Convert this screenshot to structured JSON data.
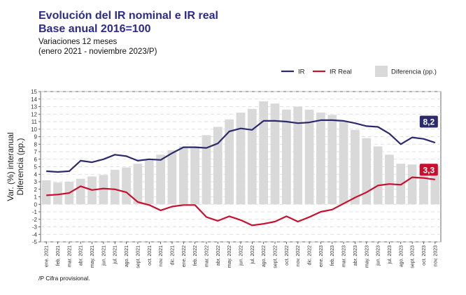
{
  "header": {
    "title_line1": "Evolución del IR nominal e IR real",
    "title_line2": "Base anual 2016=100",
    "subtitle_line1": "Variaciones 12 meses",
    "subtitle_line2": "(enero 2021 - noviembre 2023/P)"
  },
  "footnote": "/P Cifra provisional.",
  "colors": {
    "ir": "#2c2a6e",
    "ir_real": "#c8102e",
    "bar": "#d9d9d9",
    "title": "#2c2a8a"
  },
  "chart_data": {
    "type": "bar+line",
    "title": "Evolución del IR nominal e IR real",
    "subtitle": "Base anual 2016=100",
    "ylabel_line1": "Var. (%) interanual",
    "ylabel_line2": "Diferencia (pp.)",
    "ylim": [
      -5,
      15
    ],
    "yticks": [
      -5,
      -4,
      -3,
      -2,
      -1,
      0,
      1,
      2,
      3,
      4,
      5,
      6,
      7,
      8,
      9,
      10,
      11,
      12,
      13,
      14,
      15
    ],
    "categories": [
      "ene. 2021",
      "feb. 2021",
      "mar. 2021",
      "abr. 2021",
      "may. 2021",
      "jun. 2021",
      "jul. 2021",
      "ago. 2021",
      "sept. 2021",
      "oct. 2021",
      "nov. 2021",
      "dic. 2021",
      "ene. 2022",
      "feb. 2022",
      "mar. 2022",
      "abr. 2022",
      "may. 2022",
      "jun. 2022",
      "jul. 2022",
      "ago. 2022",
      "sept. 2022",
      "oct. 2022",
      "nov. 2022",
      "dic. 2022",
      "ene. 2023",
      "feb. 2023",
      "mar. 2023",
      "abr. 2023",
      "may. 2023",
      "jun. 2023",
      "jul. 2023",
      "ago. 2023",
      "sept. 2023",
      "oct. 2023",
      "nov. 2023"
    ],
    "legend": {
      "ir": "IR",
      "ir_real": "IR Real",
      "diff": "Diferencia (pp.)"
    },
    "series": [
      {
        "name": "Diferencia (pp.)",
        "kind": "bar",
        "values": [
          3.2,
          2.9,
          3.0,
          3.4,
          3.7,
          3.9,
          4.6,
          4.9,
          5.4,
          5.9,
          6.6,
          7.2,
          7.7,
          7.7,
          9.2,
          10.3,
          11.3,
          12.2,
          12.7,
          13.7,
          13.4,
          12.6,
          13.0,
          12.6,
          12.2,
          11.9,
          11.0,
          9.9,
          8.8,
          7.7,
          6.6,
          5.4,
          5.3,
          5.2,
          5.0
        ]
      },
      {
        "name": "IR",
        "kind": "line",
        "values": [
          4.4,
          4.3,
          4.4,
          5.8,
          5.6,
          6.0,
          6.6,
          6.4,
          5.8,
          6.0,
          5.9,
          6.8,
          7.6,
          7.6,
          7.5,
          8.1,
          9.7,
          10.1,
          9.9,
          11.1,
          11.1,
          11.0,
          10.8,
          10.9,
          11.2,
          11.2,
          11.1,
          10.8,
          10.4,
          10.3,
          9.4,
          8.0,
          8.9,
          8.7,
          8.2
        ]
      },
      {
        "name": "IR Real",
        "kind": "line",
        "values": [
          1.2,
          1.3,
          1.5,
          2.4,
          1.9,
          2.1,
          2.0,
          1.6,
          0.3,
          -0.1,
          -0.8,
          -0.3,
          -0.1,
          -0.1,
          -1.7,
          -2.2,
          -1.6,
          -2.1,
          -2.8,
          -2.6,
          -2.3,
          -1.6,
          -2.3,
          -1.7,
          -1.0,
          -0.7,
          0.1,
          0.9,
          1.6,
          2.5,
          2.7,
          2.6,
          3.6,
          3.5,
          3.3
        ]
      }
    ],
    "end_labels": {
      "ir": "8,2",
      "ir_real": "3,3"
    }
  }
}
